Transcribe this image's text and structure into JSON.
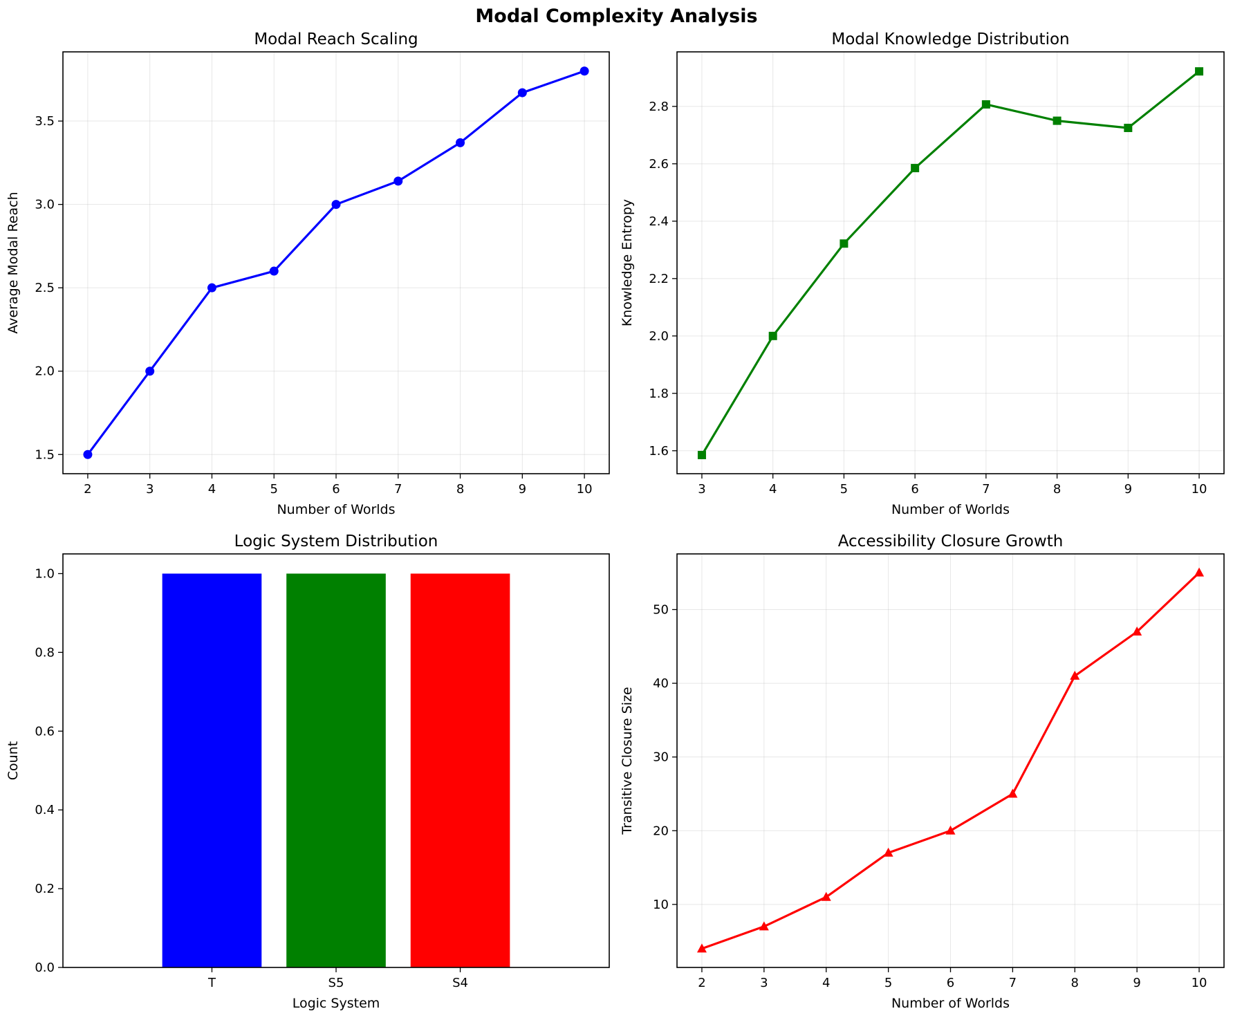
{
  "figure": {
    "title": "Modal Complexity Analysis"
  },
  "chart_data": [
    {
      "id": "reach",
      "type": "line",
      "title": "Modal Reach Scaling",
      "xlabel": "Number of Worlds",
      "ylabel": "Average Modal Reach",
      "x": [
        2,
        3,
        4,
        5,
        6,
        7,
        8,
        9,
        10
      ],
      "series": [
        {
          "values": [
            1.5,
            2.0,
            2.5,
            2.6,
            3.0,
            3.14,
            3.37,
            3.67,
            3.8
          ],
          "color": "#0000ff",
          "marker": "circle"
        }
      ],
      "xlim": [
        1.6,
        10.4
      ],
      "ylim": [
        1.385,
        3.915
      ],
      "xticks": [
        2,
        3,
        4,
        5,
        6,
        7,
        8,
        9,
        10
      ],
      "yticks": [
        1.5,
        2.0,
        2.5,
        3.0,
        3.5
      ],
      "ytick_labels": [
        "1.5",
        "2.0",
        "2.5",
        "3.0",
        "3.5"
      ],
      "grid": true
    },
    {
      "id": "knowledge",
      "type": "line",
      "title": "Modal Knowledge Distribution",
      "xlabel": "Number of Worlds",
      "ylabel": "Knowledge Entropy",
      "x": [
        3,
        4,
        5,
        6,
        7,
        8,
        9,
        10
      ],
      "series": [
        {
          "values": [
            1.585,
            2.0,
            2.322,
            2.585,
            2.807,
            2.75,
            2.725,
            2.922
          ],
          "color": "#008000",
          "marker": "square"
        }
      ],
      "xlim": [
        2.65,
        10.35
      ],
      "ylim": [
        1.52,
        2.99
      ],
      "xticks": [
        3,
        4,
        5,
        6,
        7,
        8,
        9,
        10
      ],
      "yticks": [
        1.6,
        1.8,
        2.0,
        2.2,
        2.4,
        2.6,
        2.8
      ],
      "ytick_labels": [
        "1.6",
        "1.8",
        "2.0",
        "2.2",
        "2.4",
        "2.6",
        "2.8"
      ],
      "grid": true
    },
    {
      "id": "logic",
      "type": "bar",
      "title": "Logic System Distribution",
      "xlabel": "Logic System",
      "ylabel": "Count",
      "categories": [
        "T",
        "S5",
        "S4"
      ],
      "values": [
        1,
        1,
        1
      ],
      "colors": [
        "#0000ff",
        "#008000",
        "#ff0000"
      ],
      "ylim": [
        0,
        1.05
      ],
      "yticks": [
        0.0,
        0.2,
        0.4,
        0.6,
        0.8,
        1.0
      ],
      "ytick_labels": [
        "0.0",
        "0.2",
        "0.4",
        "0.6",
        "0.8",
        "1.0"
      ],
      "grid": false
    },
    {
      "id": "closure",
      "type": "line",
      "title": "Accessibility Closure Growth",
      "xlabel": "Number of Worlds",
      "ylabel": "Transitive Closure Size",
      "x": [
        2,
        3,
        4,
        5,
        6,
        7,
        8,
        9,
        10
      ],
      "series": [
        {
          "values": [
            4,
            7,
            11,
            17,
            20,
            25,
            41,
            47,
            55
          ],
          "color": "#ff0000",
          "marker": "triangle"
        }
      ],
      "xlim": [
        1.6,
        10.4
      ],
      "ylim": [
        1.45,
        57.55
      ],
      "xticks": [
        2,
        3,
        4,
        5,
        6,
        7,
        8,
        9,
        10
      ],
      "yticks": [
        10,
        20,
        30,
        40,
        50
      ],
      "ytick_labels": [
        "10",
        "20",
        "30",
        "40",
        "50"
      ],
      "grid": true
    }
  ]
}
